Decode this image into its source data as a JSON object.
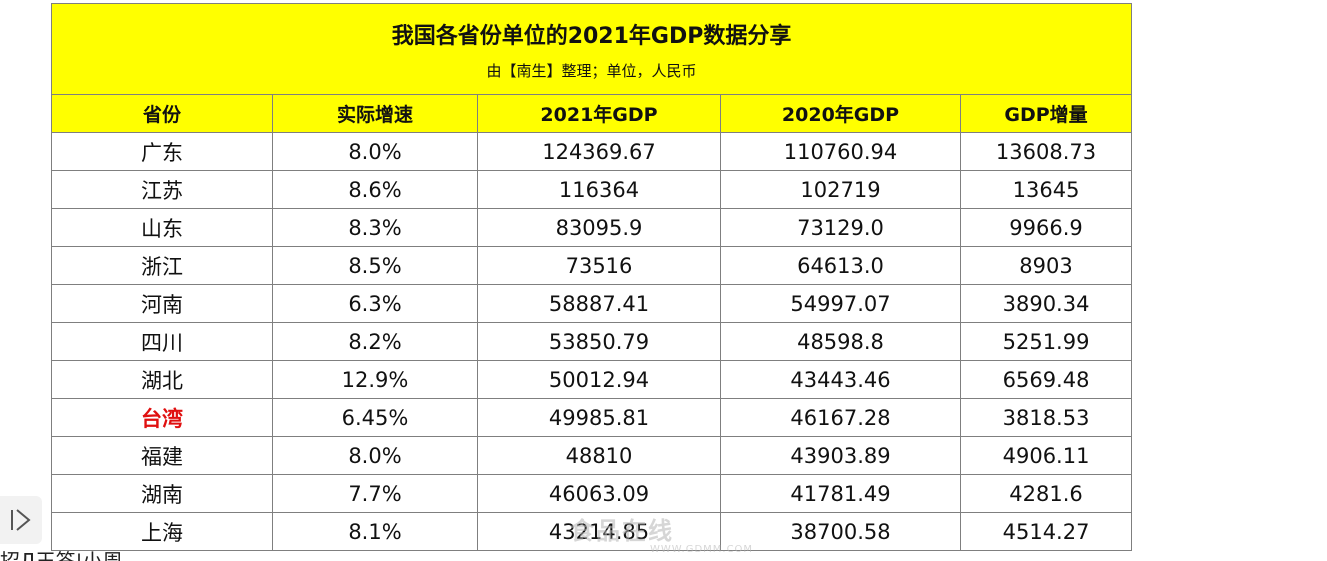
{
  "table": {
    "title": "我国各省份单位的2021年GDP数据分享",
    "subtitle": "由【南生】整理；单位，人民币",
    "headers": [
      "省份",
      "实际增速",
      "2021年GDP",
      "2020年GDP",
      "GDP增量"
    ],
    "highlight_color": "#e01010",
    "header_bg": "#ffff00",
    "rows": [
      {
        "province": "广东",
        "growth": "8.0%",
        "gdp2021": "124369.67",
        "gdp2020": "110760.94",
        "increase": "13608.73",
        "highlight": false
      },
      {
        "province": "江苏",
        "growth": "8.6%",
        "gdp2021": "116364",
        "gdp2020": "102719",
        "increase": "13645",
        "highlight": false
      },
      {
        "province": "山东",
        "growth": "8.3%",
        "gdp2021": "83095.9",
        "gdp2020": "73129.0",
        "increase": "9966.9",
        "highlight": false
      },
      {
        "province": "浙江",
        "growth": "8.5%",
        "gdp2021": "73516",
        "gdp2020": "64613.0",
        "increase": "8903",
        "highlight": false
      },
      {
        "province": "河南",
        "growth": "6.3%",
        "gdp2021": "58887.41",
        "gdp2020": "54997.07",
        "increase": "3890.34",
        "highlight": false
      },
      {
        "province": "四川",
        "growth": "8.2%",
        "gdp2021": "53850.79",
        "gdp2020": "48598.8",
        "increase": "5251.99",
        "highlight": false
      },
      {
        "province": "湖北",
        "growth": "12.9%",
        "gdp2021": "50012.94",
        "gdp2020": "43443.46",
        "increase": "6569.48",
        "highlight": false
      },
      {
        "province": "台湾",
        "growth": "6.45%",
        "gdp2021": "49985.81",
        "gdp2020": "46167.28",
        "increase": "3818.53",
        "highlight": true
      },
      {
        "province": "福建",
        "growth": "8.0%",
        "gdp2021": "48810",
        "gdp2020": "43903.89",
        "increase": "4906.11",
        "highlight": false
      },
      {
        "province": "湖南",
        "growth": "7.7%",
        "gdp2021": "46063.09",
        "gdp2020": "41781.49",
        "increase": "4281.6",
        "highlight": false
      },
      {
        "province": "上海",
        "growth": "8.1%",
        "gdp2021": "43214.85",
        "gdp2020": "38700.58",
        "increase": "4514.27",
        "highlight": false
      }
    ]
  },
  "side_button": {
    "icon": "play-outline-icon"
  },
  "bottom_caption": "招Д王答¦小周",
  "watermark": {
    "main": "食品在线",
    "url": "WWW.GDMM.COM"
  }
}
